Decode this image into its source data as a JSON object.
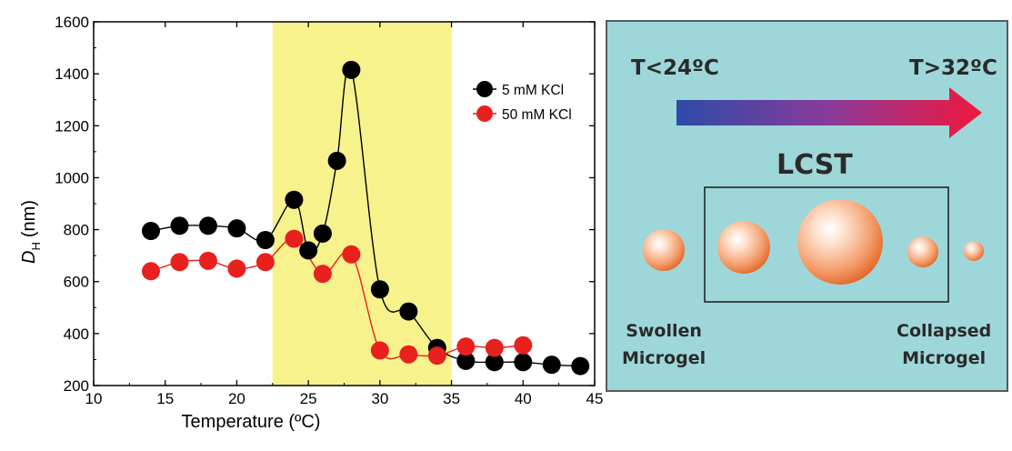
{
  "chart_data": {
    "type": "line",
    "title": "",
    "xlabel": "Temperature (ºC)",
    "ylabel_main": "D",
    "ylabel_sub": "H",
    "ylabel_unit": "(nm)",
    "xlim": [
      10,
      45
    ],
    "ylim": [
      200,
      1600
    ],
    "x_ticks": [
      "10",
      "15",
      "20",
      "25",
      "30",
      "35",
      "40",
      "45"
    ],
    "y_ticks": [
      "200",
      "400",
      "600",
      "800",
      "1000",
      "1200",
      "1400",
      "1600"
    ],
    "grid": false,
    "legend_position": "top-right",
    "highlight_band": {
      "x_from": 22.5,
      "x_to": 35,
      "color": "#f7f28c"
    },
    "series": [
      {
        "name": "5 mM KCl",
        "color": "#000000",
        "x": [
          14,
          16,
          18,
          20,
          22,
          24,
          25,
          26,
          27,
          28,
          30,
          32,
          34,
          36,
          38,
          40,
          42,
          44
        ],
        "y": [
          795,
          815,
          815,
          805,
          760,
          915,
          720,
          785,
          1065,
          1415,
          570,
          485,
          345,
          295,
          290,
          290,
          280,
          275
        ]
      },
      {
        "name": "50 mM KCl",
        "color": "#e8211f",
        "x": [
          14,
          16,
          18,
          20,
          22,
          24,
          26,
          28,
          30,
          32,
          34,
          36,
          38,
          40
        ],
        "y": [
          640,
          675,
          680,
          650,
          675,
          765,
          630,
          705,
          335,
          320,
          315,
          350,
          345,
          355
        ]
      }
    ]
  },
  "schematic": {
    "label_low": "T<24ºC",
    "label_high": "T>32ºC",
    "lcst_label": "LCST",
    "swollen_line1": "Swollen",
    "swollen_line2": "Microgel",
    "collapsed_line1": "Collapsed",
    "collapsed_line2": "Microgel",
    "background_color": "#9ed7da",
    "arrow_start_color": "#2d4ba8",
    "arrow_end_color": "#f0173d"
  }
}
